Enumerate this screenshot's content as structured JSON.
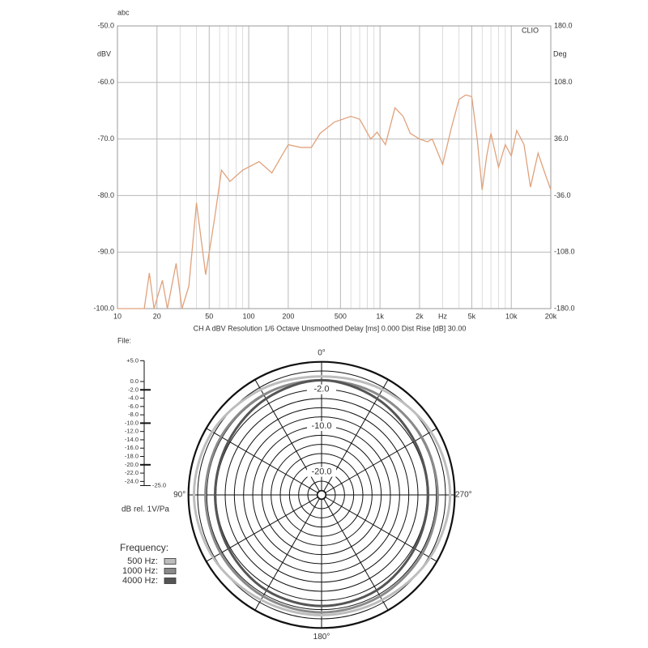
{
  "file_label": "File:",
  "chart_data": [
    {
      "type": "line",
      "corner_label": "abc",
      "brand": "CLIO",
      "ylabel": "dBV",
      "y2label": "Deg",
      "x_unit": "Hz",
      "footer": "CH A   dBV   Resolution 1/6 Octave   Unsmoothed   Delay [ms] 0.000   Dist Rise [dB] 30.00",
      "xscale": "log",
      "xlim": [
        10,
        20000
      ],
      "ylim": [
        -100,
        -50
      ],
      "y2lim": [
        -180,
        180
      ],
      "grid": true,
      "color": "#e0a27c",
      "xticks": [
        10,
        20,
        50,
        100,
        200,
        500,
        {
          "value": 1000,
          "label": "1k"
        },
        {
          "value": 2000,
          "label": "2k"
        },
        {
          "value": 5000,
          "label": "5k"
        },
        {
          "value": 10000,
          "label": "10k"
        },
        {
          "value": 20000,
          "label": "20k"
        }
      ],
      "x_minor_ticks": [
        30,
        40,
        60,
        70,
        80,
        90,
        300,
        400,
        600,
        700,
        800,
        900,
        3000,
        4000,
        6000,
        7000,
        8000,
        9000
      ],
      "yticks": [
        {
          "value": -100,
          "label": "-100.0"
        },
        {
          "value": -90,
          "label": "-90.0"
        },
        {
          "value": -80,
          "label": "-80.0"
        },
        {
          "value": -70,
          "label": "-70.0"
        },
        {
          "value": -60,
          "label": "-60.0"
        },
        {
          "value": -50,
          "label": "-50.0"
        }
      ],
      "y2ticks": [
        {
          "value": -180,
          "label": "-180.0"
        },
        {
          "value": -108,
          "label": "-108.0"
        },
        {
          "value": -36,
          "label": "-36.0"
        },
        {
          "value": 36,
          "label": "36.0"
        },
        {
          "value": 108,
          "label": "108.0"
        },
        {
          "value": 180,
          "label": "180.0"
        }
      ],
      "x": [
        10,
        16,
        17.5,
        19,
        22,
        24,
        28,
        31,
        35,
        40,
        47,
        55,
        62,
        72,
        90,
        120,
        150,
        200,
        250,
        300,
        350,
        450,
        600,
        700,
        850,
        950,
        1100,
        1300,
        1500,
        1700,
        2000,
        2300,
        2500,
        3000,
        3500,
        4000,
        4500,
        5000,
        5500,
        6000,
        6500,
        7000,
        8000,
        9000,
        10000,
        11000,
        12500,
        14000,
        16000,
        18000,
        20000
      ],
      "values": [
        -100,
        -100,
        -93.7,
        -100,
        -95,
        -100,
        -92,
        -100,
        -96,
        -81.3,
        -94,
        -84,
        -75.5,
        -77.5,
        -75.5,
        -74,
        -76,
        -71,
        -71.5,
        -71.5,
        -69,
        -67,
        -66,
        -66.5,
        -70,
        -68.8,
        -71,
        -64.5,
        -66,
        -69,
        -70,
        -70.5,
        -70,
        -74.5,
        -68,
        -63,
        -62.2,
        -62.5,
        -70,
        -79,
        -73,
        -69,
        -75,
        -71,
        -73,
        -68.5,
        -71,
        -78.5,
        -72.5,
        -76,
        -79
      ]
    },
    {
      "type": "polar",
      "rlim": [
        -25,
        5
      ],
      "theta_direction": "counterclockwise",
      "theta": [
        0,
        30,
        60,
        90,
        120,
        150,
        180,
        210,
        240,
        270,
        300,
        330
      ],
      "theta_labels": [
        {
          "value": 0,
          "label": "0°"
        },
        {
          "value": 90,
          "label": "90°"
        },
        {
          "value": 180,
          "label": "180°"
        },
        {
          "value": 270,
          "label": "270°"
        }
      ],
      "rgrid": [
        4,
        2,
        0,
        -2,
        -4,
        -6,
        -8,
        -10,
        -12,
        -14,
        -16,
        -18,
        -20,
        -22,
        -24
      ],
      "rticks": [
        {
          "value": -2,
          "label": "-2.0"
        },
        {
          "value": -10,
          "label": "-10.0"
        },
        {
          "value": -20,
          "label": "-20.0"
        }
      ],
      "scale_label": "dB rel. 1V/Pa",
      "scale_ticks": [
        {
          "value": 5,
          "label": "+5.0"
        },
        {
          "value": 0,
          "label": "0.0"
        },
        {
          "value": -2,
          "label": "-2.0"
        },
        {
          "value": -4,
          "label": "-4.0"
        },
        {
          "value": -6,
          "label": "-6.0"
        },
        {
          "value": -8,
          "label": "-8.0"
        },
        {
          "value": -10,
          "label": "-10.0"
        },
        {
          "value": -12,
          "label": "-12.0"
        },
        {
          "value": -14,
          "label": "-14.0"
        },
        {
          "value": -16,
          "label": "-16.0"
        },
        {
          "value": -18,
          "label": "-18.0"
        },
        {
          "value": -20,
          "label": "-20.0"
        },
        {
          "value": -22,
          "label": "-22.0"
        },
        {
          "value": -24,
          "label": "-24.0"
        },
        {
          "value": -25,
          "label": "-25.0"
        }
      ],
      "legend_title": "Frequency:",
      "series": [
        {
          "name": "500 Hz:",
          "color": "#bdbdbd",
          "values": [
            0.8,
            1.5,
            2.5,
            2.8,
            2.3,
            1.4,
            1.2,
            1.4,
            2.3,
            3,
            2.5,
            1.5
          ]
        },
        {
          "name": "1000 Hz:",
          "color": "#8a8a8a",
          "values": [
            0,
            0.2,
            0.3,
            0.3,
            0.4,
            0.5,
            0.6,
            0.5,
            0.4,
            0.3,
            0.2,
            0.1
          ]
        },
        {
          "name": "4000 Hz:",
          "color": "#555555",
          "values": [
            0,
            -0.8,
            -1.6,
            -1.8,
            -1.6,
            -1,
            -0.8,
            -1,
            -1.6,
            -1.8,
            -1.6,
            -0.8
          ]
        }
      ]
    }
  ]
}
